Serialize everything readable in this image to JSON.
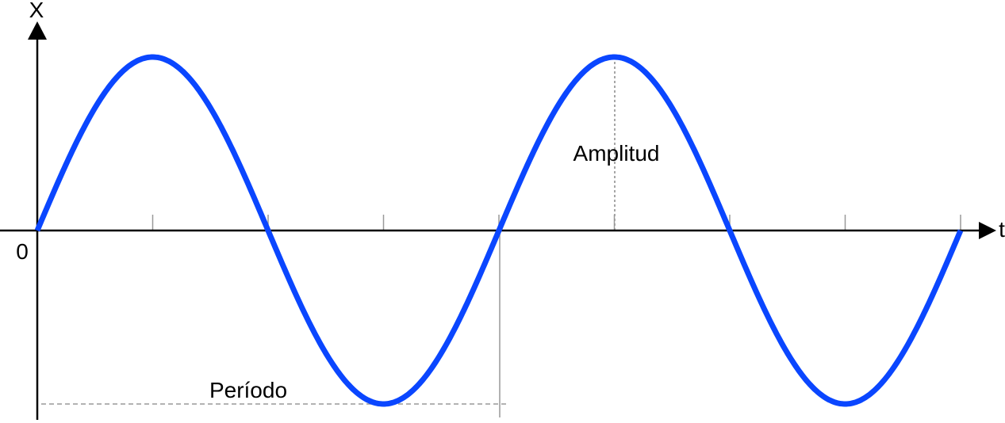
{
  "axes": {
    "y_label": "X",
    "x_label": "t",
    "origin_label": "0"
  },
  "annotations": {
    "amplitude": "Amplitud",
    "period": "Período"
  }
}
